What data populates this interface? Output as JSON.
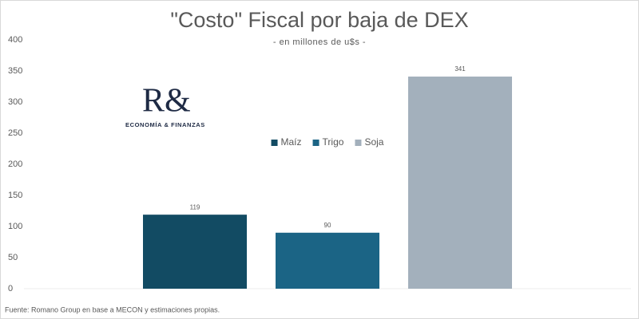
{
  "chart_data": {
    "type": "bar",
    "title": "\"Costo\" Fiscal por baja de DEX",
    "subtitle": "- en millones de u$s -",
    "categories": [
      null
    ],
    "series": [
      {
        "name": "Maíz",
        "color": "#124b63",
        "values": [
          119
        ]
      },
      {
        "name": "Trigo",
        "color": "#1b6485",
        "values": [
          90
        ]
      },
      {
        "name": "Soja",
        "color": "#a3b0bc",
        "values": [
          341
        ]
      }
    ],
    "ylim": [
      0,
      400
    ],
    "yticks": [
      0,
      50,
      100,
      150,
      200,
      250,
      300,
      350,
      400
    ],
    "grid": false,
    "legend": "center",
    "source": "Fuente: Romano Group en base a MECON y estimaciones propias."
  },
  "logo": {
    "mark": "R&",
    "text": "ECONOMÍA & FINANZAS"
  }
}
